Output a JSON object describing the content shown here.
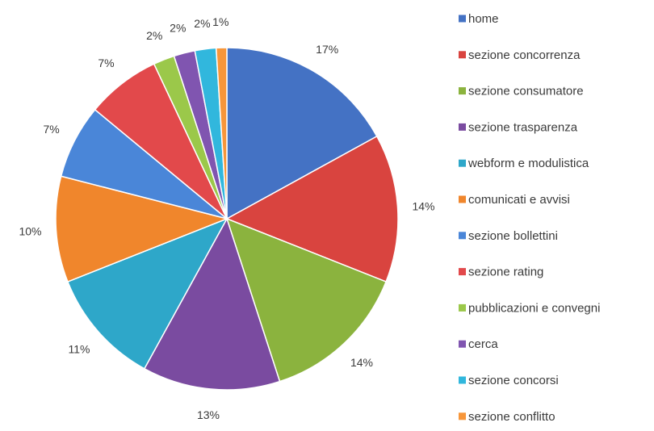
{
  "chart_data": {
    "type": "pie",
    "title": "",
    "start_angle_deg": 0,
    "direction": "clockwise",
    "legend_position": "right",
    "slices": [
      {
        "label": "home",
        "value": 17,
        "value_label": "17%",
        "color": "#4472C4"
      },
      {
        "label": "sezione concorrenza",
        "value": 14,
        "value_label": "14%",
        "color": "#D9443F"
      },
      {
        "label": "sezione consumatore",
        "value": 14,
        "value_label": "14%",
        "color": "#8BB33E"
      },
      {
        "label": "sezione trasparenza",
        "value": 13,
        "value_label": "13%",
        "color": "#7A4BA0"
      },
      {
        "label": "webform e modulistica",
        "value": 11,
        "value_label": "11%",
        "color": "#2EA7C9"
      },
      {
        "label": "comunicati e avvisi",
        "value": 10,
        "value_label": "10%",
        "color": "#F0862C"
      },
      {
        "label": "sezione bollettini",
        "value": 7,
        "value_label": "7%",
        "color": "#4A86D8"
      },
      {
        "label": "sezione rating",
        "value": 7,
        "value_label": "7%",
        "color": "#E2494B"
      },
      {
        "label": "pubblicazioni e convegni",
        "value": 2,
        "value_label": "2%",
        "color": "#9BC84A"
      },
      {
        "label": "cerca",
        "value": 2,
        "value_label": "2%",
        "color": "#8055B0"
      },
      {
        "label": "sezione concorsi",
        "value": 2,
        "value_label": "2%",
        "color": "#31B7DD"
      },
      {
        "label": "sezione conflitto",
        "value": 1,
        "value_label": "1%",
        "color": "#F7963A"
      }
    ]
  }
}
